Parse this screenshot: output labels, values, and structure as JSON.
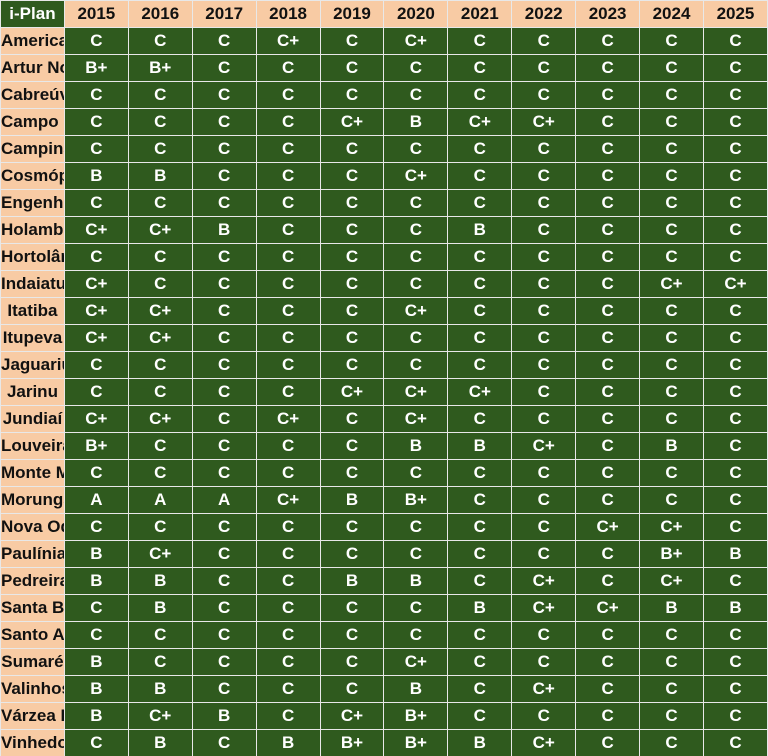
{
  "header": {
    "title": "i-Plan",
    "years": [
      "2015",
      "2016",
      "2017",
      "2018",
      "2019",
      "2020",
      "2021",
      "2022",
      "2023",
      "2024",
      "2025"
    ]
  },
  "rows": [
    {
      "name": "Americana",
      "grades": [
        "C",
        "C",
        "C",
        "C+",
        "C",
        "C+",
        "C",
        "C",
        "C",
        "C",
        "C"
      ]
    },
    {
      "name": "Artur Nogueira",
      "grades": [
        "B+",
        "B+",
        "C",
        "C",
        "C",
        "C",
        "C",
        "C",
        "C",
        "C",
        "C"
      ]
    },
    {
      "name": "Cabreúva",
      "grades": [
        "C",
        "C",
        "C",
        "C",
        "C",
        "C",
        "C",
        "C",
        "C",
        "C",
        "C"
      ]
    },
    {
      "name": "Campo Limpo Paulista",
      "grades": [
        "C",
        "C",
        "C",
        "C",
        "C+",
        "B",
        "C+",
        "C+",
        "C",
        "C",
        "C"
      ]
    },
    {
      "name": "Campinas",
      "grades": [
        "C",
        "C",
        "C",
        "C",
        "C",
        "C",
        "C",
        "C",
        "C",
        "C",
        "C"
      ]
    },
    {
      "name": "Cosmópolis",
      "grades": [
        "B",
        "B",
        "C",
        "C",
        "C",
        "C+",
        "C",
        "C",
        "C",
        "C",
        "C"
      ]
    },
    {
      "name": "Engenheiro Coelho",
      "grades": [
        "C",
        "C",
        "C",
        "C",
        "C",
        "C",
        "C",
        "C",
        "C",
        "C",
        "C"
      ]
    },
    {
      "name": "Holambra",
      "grades": [
        "C+",
        "C+",
        "B",
        "C",
        "C",
        "C",
        "B",
        "C",
        "C",
        "C",
        "C"
      ]
    },
    {
      "name": "Hortolândia",
      "grades": [
        "C",
        "C",
        "C",
        "C",
        "C",
        "C",
        "C",
        "C",
        "C",
        "C",
        "C"
      ]
    },
    {
      "name": "Indaiatuba",
      "grades": [
        "C+",
        "C",
        "C",
        "C",
        "C",
        "C",
        "C",
        "C",
        "C",
        "C+",
        "C+"
      ]
    },
    {
      "name": "Itatiba",
      "grades": [
        "C+",
        "C+",
        "C",
        "C",
        "C",
        "C+",
        "C",
        "C",
        "C",
        "C",
        "C"
      ]
    },
    {
      "name": "Itupeva",
      "grades": [
        "C+",
        "C+",
        "C",
        "C",
        "C",
        "C",
        "C",
        "C",
        "C",
        "C",
        "C"
      ]
    },
    {
      "name": "Jaguariúna",
      "grades": [
        "C",
        "C",
        "C",
        "C",
        "C",
        "C",
        "C",
        "C",
        "C",
        "C",
        "C"
      ]
    },
    {
      "name": "Jarinu",
      "grades": [
        "C",
        "C",
        "C",
        "C",
        "C+",
        "C+",
        "C+",
        "C",
        "C",
        "C",
        "C"
      ]
    },
    {
      "name": "Jundiaí",
      "grades": [
        "C+",
        "C+",
        "C",
        "C+",
        "C",
        "C+",
        "C",
        "C",
        "C",
        "C",
        "C"
      ]
    },
    {
      "name": "Louveira",
      "grades": [
        "B+",
        "C",
        "C",
        "C",
        "C",
        "B",
        "B",
        "C+",
        "C",
        "B",
        "C"
      ]
    },
    {
      "name": "Monte Mor",
      "grades": [
        "C",
        "C",
        "C",
        "C",
        "C",
        "C",
        "C",
        "C",
        "C",
        "C",
        "C"
      ]
    },
    {
      "name": "Morungaba",
      "grades": [
        "A",
        "A",
        "A",
        "C+",
        "B",
        "B+",
        "C",
        "C",
        "C",
        "C",
        "C"
      ]
    },
    {
      "name": "Nova Odessa",
      "grades": [
        "C",
        "C",
        "C",
        "C",
        "C",
        "C",
        "C",
        "C",
        "C+",
        "C+",
        "C"
      ]
    },
    {
      "name": "Paulínia",
      "grades": [
        "B",
        "C+",
        "C",
        "C",
        "C",
        "C",
        "C",
        "C",
        "C",
        "B+",
        "B"
      ]
    },
    {
      "name": "Pedreira",
      "grades": [
        "B",
        "B",
        "C",
        "C",
        "B",
        "B",
        "C",
        "C+",
        "C",
        "C+",
        "C"
      ]
    },
    {
      "name": "Santa Bárbara d'Oeste",
      "grades": [
        "C",
        "B",
        "C",
        "C",
        "C",
        "C",
        "B",
        "C+",
        "C+",
        "B",
        "B"
      ]
    },
    {
      "name": "Santo Antônio de Posse",
      "grades": [
        "C",
        "C",
        "C",
        "C",
        "C",
        "C",
        "C",
        "C",
        "C",
        "C",
        "C"
      ]
    },
    {
      "name": "Sumaré",
      "grades": [
        "B",
        "C",
        "C",
        "C",
        "C",
        "C+",
        "C",
        "C",
        "C",
        "C",
        "C"
      ]
    },
    {
      "name": "Valinhos",
      "grades": [
        "B",
        "B",
        "C",
        "C",
        "C",
        "B",
        "C",
        "C+",
        "C",
        "C",
        "C"
      ]
    },
    {
      "name": "Várzea Paulista",
      "grades": [
        "B",
        "C+",
        "B",
        "C",
        "C+",
        "B+",
        "C",
        "C",
        "C",
        "C",
        "C"
      ]
    },
    {
      "name": "Vinhedo",
      "grades": [
        "C",
        "B",
        "C",
        "B",
        "B+",
        "B+",
        "B",
        "C+",
        "C",
        "C",
        "C"
      ]
    }
  ]
}
